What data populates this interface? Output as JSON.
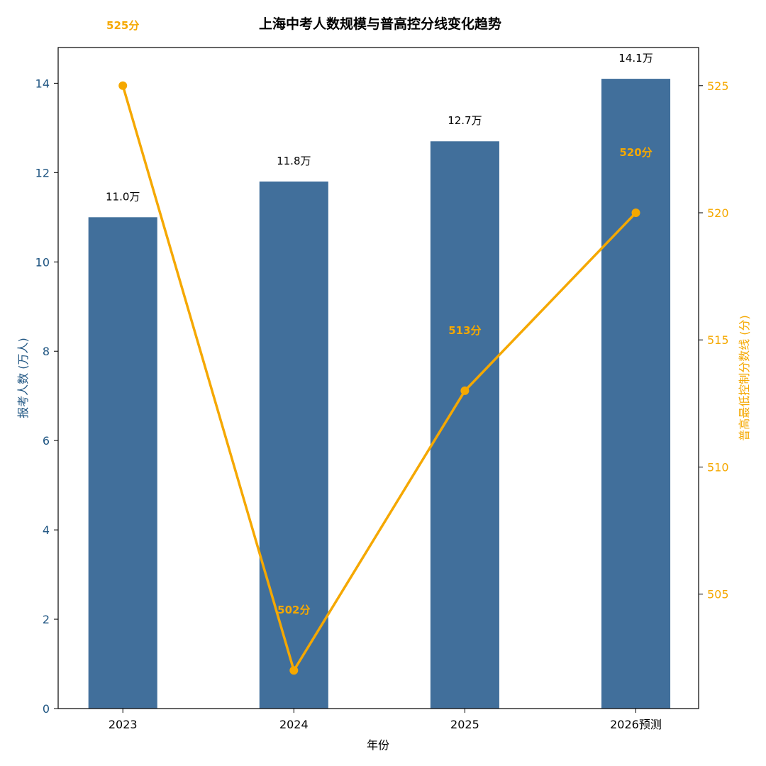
{
  "chart_data": {
    "type": "bar",
    "title": "上海中考人数规模与普高控分线变化趋势",
    "xlabel": "年份",
    "categories": [
      "2023",
      "2024",
      "2025",
      "2026预测"
    ],
    "y_left": {
      "label": "报考人数 (万人)",
      "lim": [
        0,
        14.8
      ],
      "ticks": [
        "0",
        "2",
        "4",
        "6",
        "8",
        "10",
        "12",
        "14"
      ],
      "color": "#1f5582"
    },
    "y_right": {
      "label": "普高最低控制分数线 (分)",
      "lim": [
        500.5,
        526.5
      ],
      "ticks": [
        "505",
        "510",
        "515",
        "520",
        "525"
      ],
      "color": "#f5a800"
    },
    "series": [
      {
        "type": "bar",
        "axis": "left",
        "values": [
          11.0,
          11.8,
          12.7,
          14.1
        ],
        "labels": [
          "11.0万",
          "11.8万",
          "12.7万",
          "14.1万"
        ],
        "color": "#416f9b"
      },
      {
        "type": "line",
        "axis": "right",
        "values": [
          525,
          502,
          513,
          520
        ],
        "labels": [
          "525分",
          "502分",
          "513分",
          "520分"
        ],
        "color": "#f5a800"
      }
    ],
    "grid": false,
    "legend": "none"
  }
}
